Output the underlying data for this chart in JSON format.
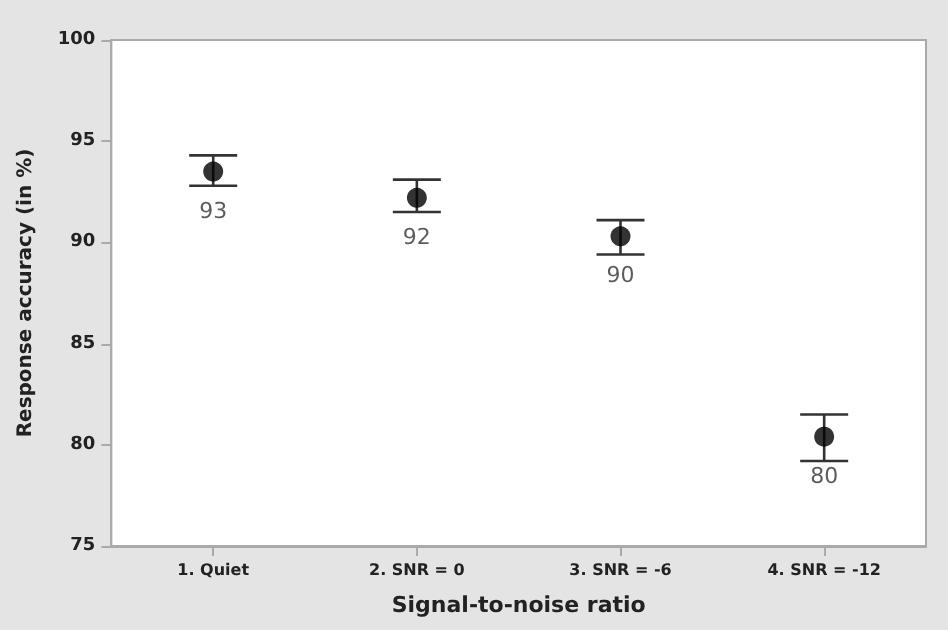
{
  "chart_data": {
    "type": "scatter",
    "xlabel": "Signal-to-noise ratio",
    "ylabel": "Response accuracy (in %)",
    "categories": [
      "1. Quiet",
      "2. SNR = 0",
      "3. SNR = -6",
      "4. SNR = -12"
    ],
    "values": [
      93.5,
      92.2,
      90.3,
      80.4
    ],
    "errors": [
      [
        92.8,
        94.3
      ],
      [
        91.5,
        93.1
      ],
      [
        89.4,
        91.1
      ],
      [
        79.2,
        81.5
      ]
    ],
    "value_labels": [
      "93",
      "92",
      "90",
      "80"
    ],
    "color": "#000000",
    "marker": "circle",
    "ylim": [
      75,
      100
    ],
    "yticks": [
      75,
      80,
      85,
      90,
      95,
      100
    ],
    "grid": false
  }
}
